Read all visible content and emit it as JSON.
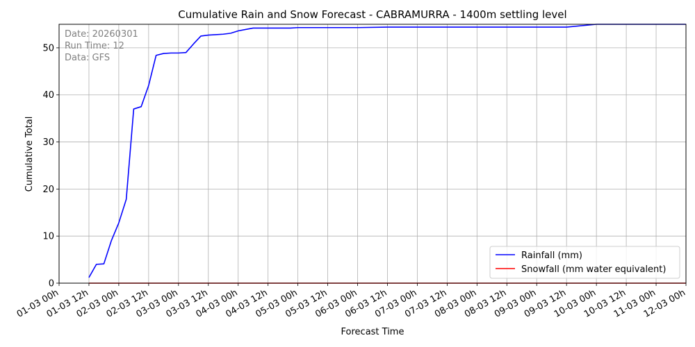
{
  "chart_data": {
    "type": "line",
    "title": "Cumulative Rain and Snow Forecast - CABRAMURRA - 1400m settling level",
    "xlabel": "Forecast Time",
    "ylabel": "Cumulative Total",
    "xlim": [
      0,
      252
    ],
    "ylim": [
      0,
      55
    ],
    "grid": true,
    "legend_position": "lower-right",
    "x_ticks": [
      {
        "value": 0,
        "label": "01-03 00h"
      },
      {
        "value": 12,
        "label": "01-03 12h"
      },
      {
        "value": 24,
        "label": "02-03 00h"
      },
      {
        "value": 36,
        "label": "02-03 12h"
      },
      {
        "value": 48,
        "label": "03-03 00h"
      },
      {
        "value": 60,
        "label": "03-03 12h"
      },
      {
        "value": 72,
        "label": "04-03 00h"
      },
      {
        "value": 84,
        "label": "04-03 12h"
      },
      {
        "value": 96,
        "label": "05-03 00h"
      },
      {
        "value": 108,
        "label": "05-03 12h"
      },
      {
        "value": 120,
        "label": "06-03 00h"
      },
      {
        "value": 132,
        "label": "06-03 12h"
      },
      {
        "value": 144,
        "label": "07-03 00h"
      },
      {
        "value": 156,
        "label": "07-03 12h"
      },
      {
        "value": 168,
        "label": "08-03 00h"
      },
      {
        "value": 180,
        "label": "08-03 12h"
      },
      {
        "value": 192,
        "label": "09-03 00h"
      },
      {
        "value": 204,
        "label": "09-03 12h"
      },
      {
        "value": 216,
        "label": "10-03 00h"
      },
      {
        "value": 228,
        "label": "10-03 12h"
      },
      {
        "value": 240,
        "label": "11-03 00h"
      },
      {
        "value": 252,
        "label": "12-03 00h"
      }
    ],
    "y_ticks": [
      0,
      10,
      20,
      30,
      40,
      50
    ],
    "annotations": [
      "Date: 20260301",
      "Run Time: 12",
      "Data: GFS"
    ],
    "series": [
      {
        "name": "Rainfall (mm)",
        "color": "#0000ff",
        "x": [
          12,
          15,
          18,
          21,
          24,
          27,
          30,
          33,
          36,
          39,
          42,
          45,
          48,
          51,
          54,
          57,
          60,
          63,
          66,
          69,
          72,
          75,
          78,
          81,
          84,
          87,
          90,
          93,
          96,
          108,
          120,
          132,
          144,
          156,
          168,
          180,
          192,
          204,
          216,
          228,
          240,
          252
        ],
        "y": [
          1.2,
          4.0,
          4.1,
          9.0,
          12.8,
          17.8,
          37.0,
          37.5,
          42.0,
          48.4,
          48.8,
          48.9,
          48.9,
          49.0,
          50.8,
          52.5,
          52.7,
          52.8,
          52.9,
          53.1,
          53.6,
          53.9,
          54.2,
          54.2,
          54.2,
          54.2,
          54.2,
          54.2,
          54.3,
          54.3,
          54.3,
          54.4,
          54.4,
          54.4,
          54.4,
          54.4,
          54.4,
          54.4,
          55.0,
          55.0,
          55.0,
          55.0
        ]
      },
      {
        "name": "Snowfall (mm water equivalent)",
        "color": "#ff0000",
        "x": [
          12,
          252
        ],
        "y": [
          0,
          0
        ]
      }
    ]
  }
}
